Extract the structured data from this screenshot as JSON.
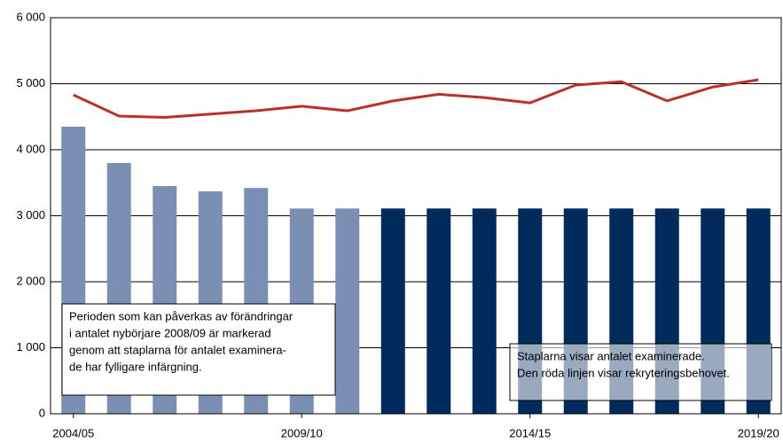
{
  "chart_data": {
    "type": "bar-line",
    "categories": [
      "2004/05",
      null,
      null,
      null,
      null,
      "2009/10",
      null,
      null,
      null,
      null,
      "2014/15",
      null,
      null,
      null,
      null,
      "2019/20"
    ],
    "bars": {
      "values": [
        4350,
        3800,
        3450,
        3370,
        3420,
        3110,
        3110,
        3110,
        3110,
        3110,
        3110,
        3110,
        3110,
        3110,
        3110,
        3110
      ],
      "colors": [
        "#7b8fb5",
        "#7b8fb5",
        "#7b8fb5",
        "#7b8fb5",
        "#7b8fb5",
        "#7b8fb5",
        "#7b8fb5",
        "#002b5c",
        "#002b5c",
        "#002b5c",
        "#002b5c",
        "#002b5c",
        "#002b5c",
        "#002b5c",
        "#002b5c",
        "#002b5c"
      ]
    },
    "line": {
      "color": "#b8322a",
      "values": [
        4830,
        4510,
        4490,
        4540,
        4590,
        4660,
        4590,
        4740,
        4840,
        4790,
        4710,
        4980,
        5030,
        4740,
        4950,
        5060
      ]
    },
    "ylim": [
      0,
      6000
    ],
    "yticks": [
      {
        "value": 0,
        "label": "0"
      },
      {
        "value": 1000,
        "label": "1 000"
      },
      {
        "value": 2000,
        "label": "2 000"
      },
      {
        "value": 3000,
        "label": "3 000"
      },
      {
        "value": 4000,
        "label": "4 000"
      },
      {
        "value": 5000,
        "label": "5 000"
      },
      {
        "value": 6000,
        "label": "6 000"
      }
    ],
    "grid": true,
    "annotations": [
      [
        "Perioden som kan påverkas av förändringar",
        "i antalet nybörjare 2008/09 är markerad",
        "genom att staplarna för antalet examinera-",
        "de har fylligare infärgning."
      ],
      [
        "Staplarna visar antalet examinerade.",
        "Den röda linjen visar rekryteringsbehovet."
      ]
    ]
  }
}
